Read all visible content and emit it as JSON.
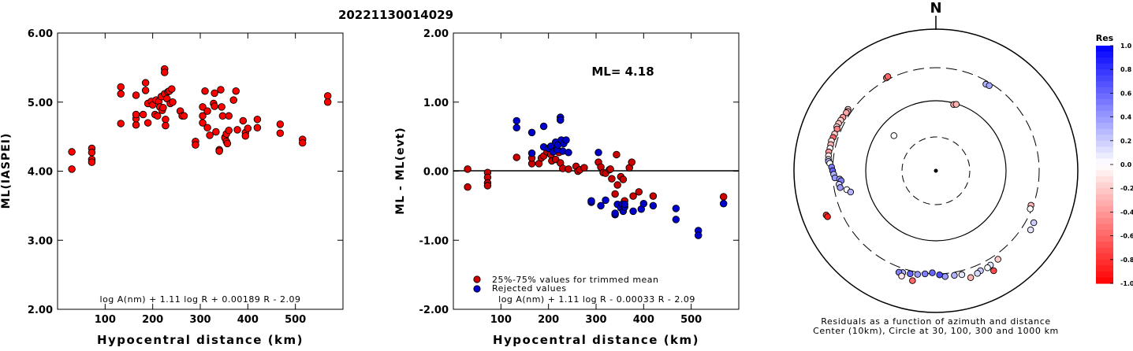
{
  "title": "20221130014029",
  "chart_data": [
    {
      "type": "scatter",
      "ylabel": "ML(IASPEI)",
      "xlabel": "Hypocentral distance (km)",
      "ylim": [
        2.0,
        6.0
      ],
      "xlim": [
        0,
        600
      ],
      "xticks": [
        "100",
        "200",
        "300",
        "400",
        "500"
      ],
      "yticks": [
        "2.00",
        "3.00",
        "4.00",
        "5.00",
        "6.00"
      ],
      "formula": "log A(nm) + 1.11 log R + 0.00189 R - 2.09",
      "marker_color": "#ff0000",
      "points": [
        [
          30,
          4.28
        ],
        [
          30,
          4.03
        ],
        [
          72,
          4.33
        ],
        [
          72,
          4.27
        ],
        [
          72,
          4.17
        ],
        [
          72,
          4.13
        ],
        [
          133,
          5.22
        ],
        [
          133,
          5.12
        ],
        [
          133,
          4.69
        ],
        [
          165,
          4.67
        ],
        [
          165,
          4.76
        ],
        [
          165,
          4.82
        ],
        [
          165,
          5.1
        ],
        [
          180,
          4.82
        ],
        [
          185,
          5.17
        ],
        [
          185,
          5.28
        ],
        [
          190,
          4.98
        ],
        [
          190,
          4.7
        ],
        [
          197,
          5.01
        ],
        [
          200,
          4.96
        ],
        [
          205,
          4.82
        ],
        [
          207,
          5.03
        ],
        [
          210,
          4.8
        ],
        [
          213,
          5.01
        ],
        [
          215,
          4.93
        ],
        [
          218,
          5.08
        ],
        [
          220,
          4.88
        ],
        [
          222,
          4.92
        ],
        [
          225,
          5.48
        ],
        [
          225,
          5.43
        ],
        [
          225,
          5.12
        ],
        [
          227,
          4.75
        ],
        [
          227,
          4.66
        ],
        [
          230,
          5.05
        ],
        [
          232,
          5.15
        ],
        [
          235,
          5.16
        ],
        [
          237,
          4.98
        ],
        [
          240,
          5.19
        ],
        [
          242,
          5.0
        ],
        [
          258,
          4.87
        ],
        [
          262,
          4.8
        ],
        [
          266,
          4.8
        ],
        [
          290,
          4.43
        ],
        [
          290,
          4.38
        ],
        [
          305,
          4.93
        ],
        [
          305,
          4.7
        ],
        [
          305,
          4.8
        ],
        [
          310,
          5.16
        ],
        [
          315,
          4.63
        ],
        [
          315,
          4.87
        ],
        [
          320,
          4.52
        ],
        [
          328,
          4.98
        ],
        [
          330,
          5.13
        ],
        [
          330,
          4.94
        ],
        [
          333,
          4.57
        ],
        [
          340,
          4.31
        ],
        [
          340,
          4.29
        ],
        [
          343,
          5.18
        ],
        [
          345,
          4.93
        ],
        [
          347,
          4.8
        ],
        [
          352,
          4.49
        ],
        [
          352,
          4.48
        ],
        [
          355,
          4.54
        ],
        [
          355,
          4.43
        ],
        [
          357,
          4.4
        ],
        [
          360,
          4.59
        ],
        [
          360,
          4.8
        ],
        [
          370,
          5.03
        ],
        [
          375,
          5.16
        ],
        [
          378,
          4.6
        ],
        [
          390,
          4.73
        ],
        [
          395,
          4.56
        ],
        [
          395,
          4.51
        ],
        [
          400,
          4.62
        ],
        [
          420,
          4.75
        ],
        [
          420,
          4.63
        ],
        [
          468,
          4.68
        ],
        [
          468,
          4.55
        ],
        [
          515,
          4.46
        ],
        [
          515,
          4.41
        ],
        [
          568,
          5.09
        ],
        [
          568,
          5.0
        ]
      ]
    },
    {
      "type": "scatter",
      "ylabel": "ML - ML(evt)",
      "xlabel": "Hypocentral distance (km)",
      "ylim": [
        -2.0,
        2.0
      ],
      "xlim": [
        0,
        600
      ],
      "xticks": [
        "100",
        "200",
        "300",
        "400",
        "500"
      ],
      "yticks": [
        "-2.00",
        "-1.00",
        "0.00",
        "1.00",
        "2.00"
      ],
      "annotation": "ML= 4.18",
      "formula": "log A(nm) + 1.11 log R - 0.00033 R - 2.09",
      "legend": [
        {
          "label": "25%-75% values for trimmed mean",
          "color": "#cc0000"
        },
        {
          "label": "Rejected values",
          "color": "#0000cc"
        }
      ],
      "series": [
        {
          "name": "25%-75% values for trimmed mean",
          "color": "#cc0000",
          "points": [
            [
              30,
              0.03
            ],
            [
              30,
              -0.23
            ],
            [
              72,
              -0.02
            ],
            [
              72,
              -0.09
            ],
            [
              72,
              -0.17
            ],
            [
              72,
              -0.21
            ],
            [
              133,
              0.2
            ],
            [
              165,
              0.11
            ],
            [
              165,
              0.19
            ],
            [
              180,
              0.11
            ],
            [
              185,
              0.19
            ],
            [
              190,
              0.22
            ],
            [
              197,
              0.28
            ],
            [
              205,
              0.24
            ],
            [
              207,
              0.15
            ],
            [
              213,
              0.32
            ],
            [
              215,
              0.17
            ],
            [
              218,
              0.31
            ],
            [
              222,
              0.27
            ],
            [
              225,
              0.12
            ],
            [
              230,
              0.04
            ],
            [
              242,
              0.03
            ],
            [
              258,
              0.07
            ],
            [
              262,
              0.0
            ],
            [
              266,
              0.02
            ],
            [
              275,
              0.05
            ],
            [
              305,
              0.13
            ],
            [
              310,
              0.06
            ],
            [
              315,
              -0.02
            ],
            [
              320,
              -0.03
            ],
            [
              328,
              0.02
            ],
            [
              330,
              0.03
            ],
            [
              333,
              -0.11
            ],
            [
              340,
              -0.33
            ],
            [
              343,
              0.24
            ],
            [
              345,
              -0.2
            ],
            [
              352,
              -0.08
            ],
            [
              357,
              -0.12
            ],
            [
              360,
              -0.43
            ],
            [
              370,
              0.05
            ],
            [
              375,
              0.13
            ],
            [
              378,
              -0.36
            ],
            [
              390,
              -0.3
            ],
            [
              420,
              -0.36
            ],
            [
              568,
              -0.37
            ]
          ]
        },
        {
          "name": "Rejected values",
          "color": "#0000cc",
          "points": [
            [
              133,
              0.73
            ],
            [
              133,
              0.63
            ],
            [
              165,
              0.56
            ],
            [
              165,
              0.26
            ],
            [
              190,
              0.65
            ],
            [
              190,
              0.35
            ],
            [
              200,
              0.33
            ],
            [
              205,
              0.36
            ],
            [
              210,
              0.28
            ],
            [
              215,
              0.42
            ],
            [
              218,
              0.31
            ],
            [
              220,
              0.38
            ],
            [
              225,
              0.78
            ],
            [
              225,
              0.74
            ],
            [
              227,
              0.45
            ],
            [
              230,
              0.29
            ],
            [
              232,
              0.4
            ],
            [
              237,
              0.45
            ],
            [
              242,
              0.27
            ],
            [
              305,
              0.27
            ],
            [
              290,
              -0.45
            ],
            [
              290,
              -0.43
            ],
            [
              310,
              -0.5
            ],
            [
              320,
              -0.42
            ],
            [
              340,
              -0.63
            ],
            [
              340,
              -0.61
            ],
            [
              345,
              -0.48
            ],
            [
              352,
              -0.53
            ],
            [
              355,
              -0.48
            ],
            [
              357,
              -0.58
            ],
            [
              360,
              -0.52
            ],
            [
              360,
              -0.48
            ],
            [
              378,
              -0.58
            ],
            [
              395,
              -0.55
            ],
            [
              400,
              -0.47
            ],
            [
              420,
              -0.5
            ],
            [
              468,
              -0.54
            ],
            [
              468,
              -0.7
            ],
            [
              515,
              -0.86
            ],
            [
              515,
              -0.93
            ],
            [
              568,
              -0.47
            ]
          ]
        }
      ]
    },
    {
      "type": "scatter",
      "subtype": "polar",
      "north_label": "N",
      "caption_line1": "Residuals as a function of azimuth and distance",
      "caption_line2": "Center (10km), Circle at 30, 100, 300 and 1000 km",
      "colorbar": {
        "title": "Res",
        "ticks": [
          "1.0",
          "0.8",
          "0.6",
          "0.4",
          "0.2",
          "0.0",
          "-0.2",
          "-0.4",
          "-0.6",
          "-0.8",
          "-1.0"
        ],
        "max": 1.0,
        "min": -1.0
      },
      "rings_km": [
        30,
        100,
        300,
        1000
      ],
      "points": [
        {
          "az": 30,
          "dist": 270,
          "res": 0.3
        },
        {
          "az": 32,
          "dist": 275,
          "res": 0.35
        },
        {
          "az": -28,
          "dist": 320,
          "res": -0.5
        },
        {
          "az": -27,
          "dist": 325,
          "res": -0.6
        },
        {
          "az": 15,
          "dist": 95,
          "res": -0.35
        },
        {
          "az": 17,
          "dist": 98,
          "res": -0.3
        },
        {
          "az": -50,
          "dist": 60,
          "res": 0.0
        },
        {
          "az": -55,
          "dist": 340,
          "res": -0.2
        },
        {
          "az": -56,
          "dist": 330,
          "res": -0.3
        },
        {
          "az": -57,
          "dist": 335,
          "res": -0.35
        },
        {
          "az": -60,
          "dist": 340,
          "res": -0.4
        },
        {
          "az": -62,
          "dist": 345,
          "res": -0.2
        },
        {
          "az": -64,
          "dist": 350,
          "res": -0.25
        },
        {
          "az": -66,
          "dist": 352,
          "res": -0.1
        },
        {
          "az": -67,
          "dist": 340,
          "res": -0.5
        },
        {
          "az": -70,
          "dist": 345,
          "res": -0.2
        },
        {
          "az": -72,
          "dist": 348,
          "res": -0.6
        },
        {
          "az": -74,
          "dist": 355,
          "res": -0.1
        },
        {
          "az": -76,
          "dist": 352,
          "res": -0.3
        },
        {
          "az": -78,
          "dist": 350,
          "res": 0.0
        },
        {
          "az": -80,
          "dist": 356,
          "res": -0.4
        },
        {
          "az": -82,
          "dist": 352,
          "res": -0.1
        },
        {
          "az": -84,
          "dist": 348,
          "res": 0.1
        },
        {
          "az": -85,
          "dist": 345,
          "res": 0.3
        },
        {
          "az": -86,
          "dist": 330,
          "res": 0.0
        },
        {
          "az": -88,
          "dist": 310,
          "res": 0.5
        },
        {
          "az": -90,
          "dist": 300,
          "res": 0.6
        },
        {
          "az": -92,
          "dist": 290,
          "res": 0.3
        },
        {
          "az": -94,
          "dist": 280,
          "res": 0.4
        },
        {
          "az": -95,
          "dist": 240,
          "res": 0.3
        },
        {
          "az": -96,
          "dist": 230,
          "res": 0.5
        },
        {
          "az": -98,
          "dist": 250,
          "res": 0.2
        },
        {
          "az": -100,
          "dist": 245,
          "res": 0.4
        },
        {
          "az": -102,
          "dist": 200,
          "res": 0.0
        },
        {
          "az": -104,
          "dist": 180,
          "res": 0.3
        },
        {
          "az": -112,
          "dist": 480,
          "res": -0.8
        },
        {
          "az": -113,
          "dist": 470,
          "res": -0.9
        },
        {
          "az": 110,
          "dist": 280,
          "res": -0.3
        },
        {
          "az": 112,
          "dist": 285,
          "res": 0.0
        },
        {
          "az": 118,
          "dist": 380,
          "res": 0.2
        },
        {
          "az": 122,
          "dist": 390,
          "res": 0.1
        },
        {
          "az": 145,
          "dist": 350,
          "res": -0.2
        },
        {
          "az": 150,
          "dist": 360,
          "res": 0.1
        },
        {
          "az": 152,
          "dist": 370,
          "res": 0.0
        },
        {
          "az": 156,
          "dist": 365,
          "res": 0.2
        },
        {
          "az": 158,
          "dist": 380,
          "res": 0.15
        },
        {
          "az": 162,
          "dist": 400,
          "res": -0.3
        },
        {
          "az": 166,
          "dist": 340,
          "res": 0.1
        },
        {
          "az": 170,
          "dist": 330,
          "res": 0.3
        },
        {
          "az": 175,
          "dist": 330,
          "res": 0.4
        },
        {
          "az": 178,
          "dist": 310,
          "res": 0.7
        },
        {
          "az": 182,
          "dist": 290,
          "res": 0.6
        },
        {
          "az": 186,
          "dist": 305,
          "res": 0.5
        },
        {
          "az": 190,
          "dist": 320,
          "res": 0.4
        },
        {
          "az": 194,
          "dist": 330,
          "res": 0.6
        },
        {
          "az": 198,
          "dist": 340,
          "res": 0.3
        },
        {
          "az": 200,
          "dist": 350,
          "res": 0.5
        },
        {
          "az": 192,
          "dist": 400,
          "res": -0.6
        },
        {
          "az": 198,
          "dist": 380,
          "res": -0.1
        },
        {
          "az": 150,
          "dist": 440,
          "res": -0.7
        }
      ]
    }
  ]
}
